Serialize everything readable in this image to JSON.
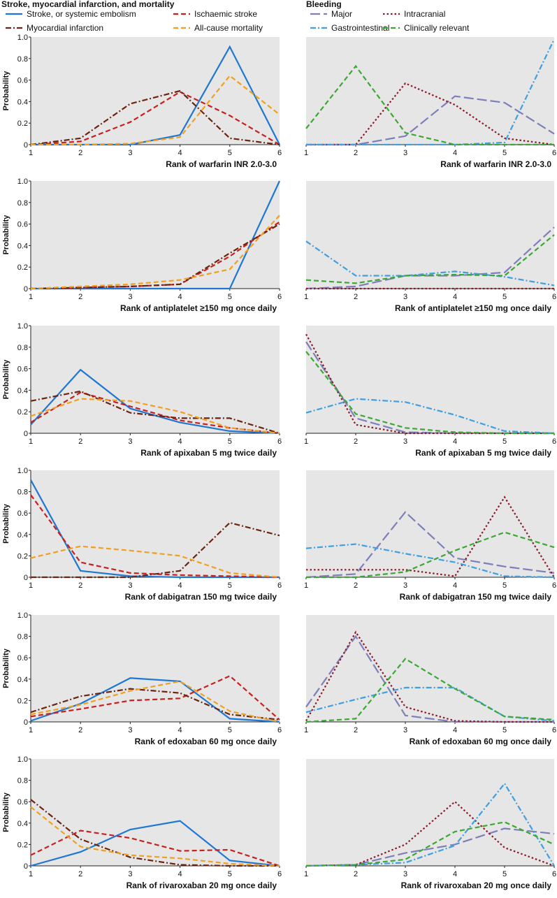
{
  "headers": {
    "left": "Stroke, myocardial infarction, and mortality",
    "right": "Bleeding"
  },
  "legend_left": [
    {
      "name": "Stroke, or systemic embolism",
      "color": "#1f77d4",
      "dash": "solid"
    },
    {
      "name": "Ischaemic stroke",
      "color": "#c8201e",
      "dash": "dashed"
    },
    {
      "name": "Myocardial infarction",
      "color": "#6b2410",
      "dash": "dashdot"
    },
    {
      "name": "All-cause mortality",
      "color": "#f0a020",
      "dash": "dashed"
    }
  ],
  "legend_right": [
    {
      "name": "Major",
      "color": "#7e7fb8",
      "dash": "longdash"
    },
    {
      "name": "Intracranial",
      "color": "#8a1a2a",
      "dash": "dotted"
    },
    {
      "name": "Gastrointestinal",
      "color": "#3f9fe0",
      "dash": "dashdot"
    },
    {
      "name": "Clinically relevant",
      "color": "#3aa832",
      "dash": "dashed"
    }
  ],
  "y_axis_label": "Probability",
  "chart_data": [
    {
      "type": "line",
      "group": "left",
      "xlabel": "Rank of warfarin INR 2.0-3.0",
      "x": [
        1,
        2,
        3,
        4,
        5,
        6
      ],
      "ylim": [
        0,
        1.0
      ],
      "yticks": [
        "0",
        "0.2",
        "0.4",
        "0.6",
        "0.8",
        "1.0"
      ],
      "grid": false,
      "background": "#e6e6e6",
      "series": [
        {
          "name": "Stroke, or systemic embolism",
          "values": [
            0,
            0,
            0,
            0.09,
            0.91,
            0
          ]
        },
        {
          "name": "Ischaemic stroke",
          "values": [
            0,
            0.03,
            0.21,
            0.49,
            0.27,
            0
          ]
        },
        {
          "name": "Myocardial infarction",
          "values": [
            0,
            0.06,
            0.38,
            0.5,
            0.06,
            0
          ]
        },
        {
          "name": "All-cause mortality",
          "values": [
            0,
            0,
            0.01,
            0.07,
            0.64,
            0.28
          ]
        }
      ]
    },
    {
      "type": "line",
      "group": "right",
      "xlabel": "Rank of warfarin INR 2.0-3.0",
      "x": [
        1,
        2,
        3,
        4,
        5,
        6
      ],
      "ylim": [
        0,
        1.0
      ],
      "yticks": [],
      "grid": false,
      "background": "#e6e6e6",
      "series": [
        {
          "name": "Major",
          "values": [
            0,
            0,
            0.08,
            0.45,
            0.39,
            0.1
          ]
        },
        {
          "name": "Intracranial",
          "values": [
            0,
            0,
            0.57,
            0.37,
            0.06,
            0
          ]
        },
        {
          "name": "Gastrointestinal",
          "values": [
            0,
            0,
            0,
            0,
            0.02,
            0.98
          ]
        },
        {
          "name": "Clinically relevant",
          "values": [
            0.15,
            0.73,
            0.11,
            0,
            0,
            0
          ]
        }
      ]
    },
    {
      "type": "line",
      "group": "left",
      "xlabel": "Rank of antiplatelet ≥150 mg once daily",
      "x": [
        1,
        2,
        3,
        4,
        5,
        6
      ],
      "ylim": [
        0,
        1.0
      ],
      "yticks": [
        "0",
        "0.2",
        "0.4",
        "0.6",
        "0.8",
        "1.0"
      ],
      "grid": false,
      "background": "#e6e6e6",
      "series": [
        {
          "name": "Stroke, or systemic embolism",
          "values": [
            0,
            0,
            0,
            0,
            0,
            1.0
          ]
        },
        {
          "name": "Ischaemic stroke",
          "values": [
            0,
            0.01,
            0.02,
            0.04,
            0.3,
            0.62
          ]
        },
        {
          "name": "Myocardial infarction",
          "values": [
            0,
            0.01,
            0.02,
            0.04,
            0.33,
            0.6
          ]
        },
        {
          "name": "All-cause mortality",
          "values": [
            0,
            0.02,
            0.04,
            0.08,
            0.18,
            0.68
          ]
        }
      ]
    },
    {
      "type": "line",
      "group": "right",
      "xlabel": "Rank of antiplatelet ≥150 mg once daily",
      "x": [
        1,
        2,
        3,
        4,
        5,
        6
      ],
      "ylim": [
        0,
        1.0
      ],
      "yticks": [],
      "grid": false,
      "background": "#e6e6e6",
      "series": [
        {
          "name": "Major",
          "values": [
            0,
            0.02,
            0.12,
            0.12,
            0.15,
            0.57
          ]
        },
        {
          "name": "Intracranial",
          "values": [
            0,
            0,
            0,
            0,
            0,
            0
          ]
        },
        {
          "name": "Gastrointestinal",
          "values": [
            0.44,
            0.12,
            0.12,
            0.16,
            0.11,
            0.03
          ]
        },
        {
          "name": "Clinically relevant",
          "values": [
            0.08,
            0.05,
            0.12,
            0.13,
            0.12,
            0.5
          ]
        }
      ]
    },
    {
      "type": "line",
      "group": "left",
      "xlabel": "Rank of apixaban 5 mg twice daily",
      "x": [
        1,
        2,
        3,
        4,
        5,
        6
      ],
      "ylim": [
        0,
        1.0
      ],
      "yticks": [
        "0",
        "0.2",
        "0.4",
        "0.6",
        "0.8",
        "1.0"
      ],
      "grid": false,
      "background": "#e6e6e6",
      "series": [
        {
          "name": "Stroke, or systemic embolism",
          "values": [
            0.08,
            0.59,
            0.23,
            0.1,
            0.02,
            0
          ]
        },
        {
          "name": "Ischaemic stroke",
          "values": [
            0.1,
            0.38,
            0.25,
            0.12,
            0.05,
            0
          ]
        },
        {
          "name": "Myocardial infarction",
          "values": [
            0.3,
            0.39,
            0.19,
            0.14,
            0.14,
            0
          ]
        },
        {
          "name": "All-cause mortality",
          "values": [
            0.16,
            0.32,
            0.3,
            0.2,
            0.05,
            0
          ]
        }
      ]
    },
    {
      "type": "line",
      "group": "right",
      "xlabel": "Rank of apixaban 5 mg twice daily",
      "x": [
        1,
        2,
        3,
        4,
        5,
        6
      ],
      "ylim": [
        0,
        1.0
      ],
      "yticks": [],
      "grid": false,
      "background": "#e6e6e6",
      "series": [
        {
          "name": "Major",
          "values": [
            0.85,
            0.14,
            0.01,
            0,
            0,
            0
          ]
        },
        {
          "name": "Intracranial",
          "values": [
            0.92,
            0.08,
            0,
            0,
            0,
            0
          ]
        },
        {
          "name": "Gastrointestinal",
          "values": [
            0.19,
            0.32,
            0.29,
            0.17,
            0.02,
            0
          ]
        },
        {
          "name": "Clinically relevant",
          "values": [
            0.76,
            0.18,
            0.05,
            0.01,
            0,
            0
          ]
        }
      ]
    },
    {
      "type": "line",
      "group": "left",
      "xlabel": "Rank of dabigatran 150 mg twice daily",
      "x": [
        1,
        2,
        3,
        4,
        5,
        6
      ],
      "ylim": [
        0,
        1.0
      ],
      "yticks": [
        "0",
        "0.2",
        "0.4",
        "0.6",
        "0.8",
        "1.0"
      ],
      "grid": false,
      "background": "#e6e6e6",
      "series": [
        {
          "name": "Stroke, or systemic embolism",
          "values": [
            0.91,
            0.06,
            0.01,
            0,
            0,
            0
          ]
        },
        {
          "name": "Ischaemic stroke",
          "values": [
            0.77,
            0.14,
            0.04,
            0.02,
            0.01,
            0
          ]
        },
        {
          "name": "Myocardial infarction",
          "values": [
            0,
            0,
            0,
            0.06,
            0.51,
            0.39
          ]
        },
        {
          "name": "All-cause mortality",
          "values": [
            0.18,
            0.29,
            0.25,
            0.2,
            0.04,
            0
          ]
        }
      ]
    },
    {
      "type": "line",
      "group": "right",
      "xlabel": "Rank of dabigatran 150 mg twice daily",
      "x": [
        1,
        2,
        3,
        4,
        5,
        6
      ],
      "ylim": [
        0,
        1.0
      ],
      "yticks": [],
      "grid": false,
      "background": "#e6e6e6",
      "series": [
        {
          "name": "Major",
          "values": [
            0,
            0.03,
            0.61,
            0.18,
            0.1,
            0.04
          ]
        },
        {
          "name": "Intracranial",
          "values": [
            0.07,
            0.07,
            0.07,
            0.01,
            0.75,
            0
          ]
        },
        {
          "name": "Gastrointestinal",
          "values": [
            0.27,
            0.31,
            0.22,
            0.14,
            0.01,
            0
          ]
        },
        {
          "name": "Clinically relevant",
          "values": [
            0,
            0,
            0.05,
            0.25,
            0.42,
            0.28
          ]
        }
      ]
    },
    {
      "type": "line",
      "group": "left",
      "xlabel": "Rank of edoxaban 60 mg once daily",
      "x": [
        1,
        2,
        3,
        4,
        5,
        6
      ],
      "ylim": [
        0,
        1.0
      ],
      "yticks": [
        "0",
        "0.2",
        "0.4",
        "0.6",
        "0.8",
        "1.0"
      ],
      "grid": false,
      "background": "#e6e6e6",
      "series": [
        {
          "name": "Stroke, or systemic embolism",
          "values": [
            0.01,
            0.17,
            0.41,
            0.38,
            0.03,
            0
          ]
        },
        {
          "name": "Ischaemic stroke",
          "values": [
            0.05,
            0.12,
            0.2,
            0.22,
            0.43,
            0.02
          ]
        },
        {
          "name": "Myocardial infarction",
          "values": [
            0.09,
            0.24,
            0.31,
            0.27,
            0.07,
            0.02
          ]
        },
        {
          "name": "All-cause mortality",
          "values": [
            0.07,
            0.16,
            0.29,
            0.38,
            0.1,
            0
          ]
        }
      ]
    },
    {
      "type": "line",
      "group": "right",
      "xlabel": "Rank of edoxaban 60 mg once daily",
      "x": [
        1,
        2,
        3,
        4,
        5,
        6
      ],
      "ylim": [
        0,
        1.0
      ],
      "yticks": [],
      "grid": false,
      "background": "#e6e6e6",
      "series": [
        {
          "name": "Major",
          "values": [
            0.14,
            0.8,
            0.06,
            0,
            0,
            0
          ]
        },
        {
          "name": "Intracranial",
          "values": [
            0.01,
            0.84,
            0.14,
            0.01,
            0,
            0
          ]
        },
        {
          "name": "Gastrointestinal",
          "values": [
            0.09,
            0.21,
            0.32,
            0.32,
            0.05,
            0.01
          ]
        },
        {
          "name": "Clinically relevant",
          "values": [
            0,
            0.03,
            0.59,
            0.31,
            0.05,
            0.02
          ]
        }
      ]
    },
    {
      "type": "line",
      "group": "left",
      "xlabel": "Rank of rivaroxaban 20 mg once daily",
      "x": [
        1,
        2,
        3,
        4,
        5,
        6
      ],
      "ylim": [
        0,
        1.0
      ],
      "yticks": [
        "0",
        "0.2",
        "0.4",
        "0.6",
        "0.8",
        "1.0"
      ],
      "grid": false,
      "background": "#e6e6e6",
      "series": [
        {
          "name": "Stroke, or systemic embolism",
          "values": [
            0,
            0.13,
            0.34,
            0.42,
            0.05,
            0
          ]
        },
        {
          "name": "Ischaemic stroke",
          "values": [
            0.1,
            0.33,
            0.26,
            0.14,
            0.15,
            0
          ]
        },
        {
          "name": "Myocardial infarction",
          "values": [
            0.62,
            0.25,
            0.08,
            0.01,
            0,
            0
          ]
        },
        {
          "name": "All-cause mortality",
          "values": [
            0.55,
            0.18,
            0.1,
            0.07,
            0.02,
            0
          ]
        }
      ]
    },
    {
      "type": "line",
      "group": "right",
      "xlabel": "Rank of rivaroxaban 20 mg once daily",
      "x": [
        1,
        2,
        3,
        4,
        5,
        6
      ],
      "ylim": [
        0,
        1.0
      ],
      "yticks": [],
      "grid": false,
      "background": "#e6e6e6",
      "series": [
        {
          "name": "Major",
          "values": [
            0,
            0.01,
            0.12,
            0.2,
            0.35,
            0.3
          ]
        },
        {
          "name": "Intracranial",
          "values": [
            0,
            0.01,
            0.2,
            0.6,
            0.17,
            0
          ]
        },
        {
          "name": "Gastrointestinal",
          "values": [
            0,
            0.01,
            0.03,
            0.19,
            0.77,
            0
          ]
        },
        {
          "name": "Clinically relevant",
          "values": [
            0,
            0.01,
            0.06,
            0.32,
            0.41,
            0.2
          ]
        }
      ]
    }
  ]
}
